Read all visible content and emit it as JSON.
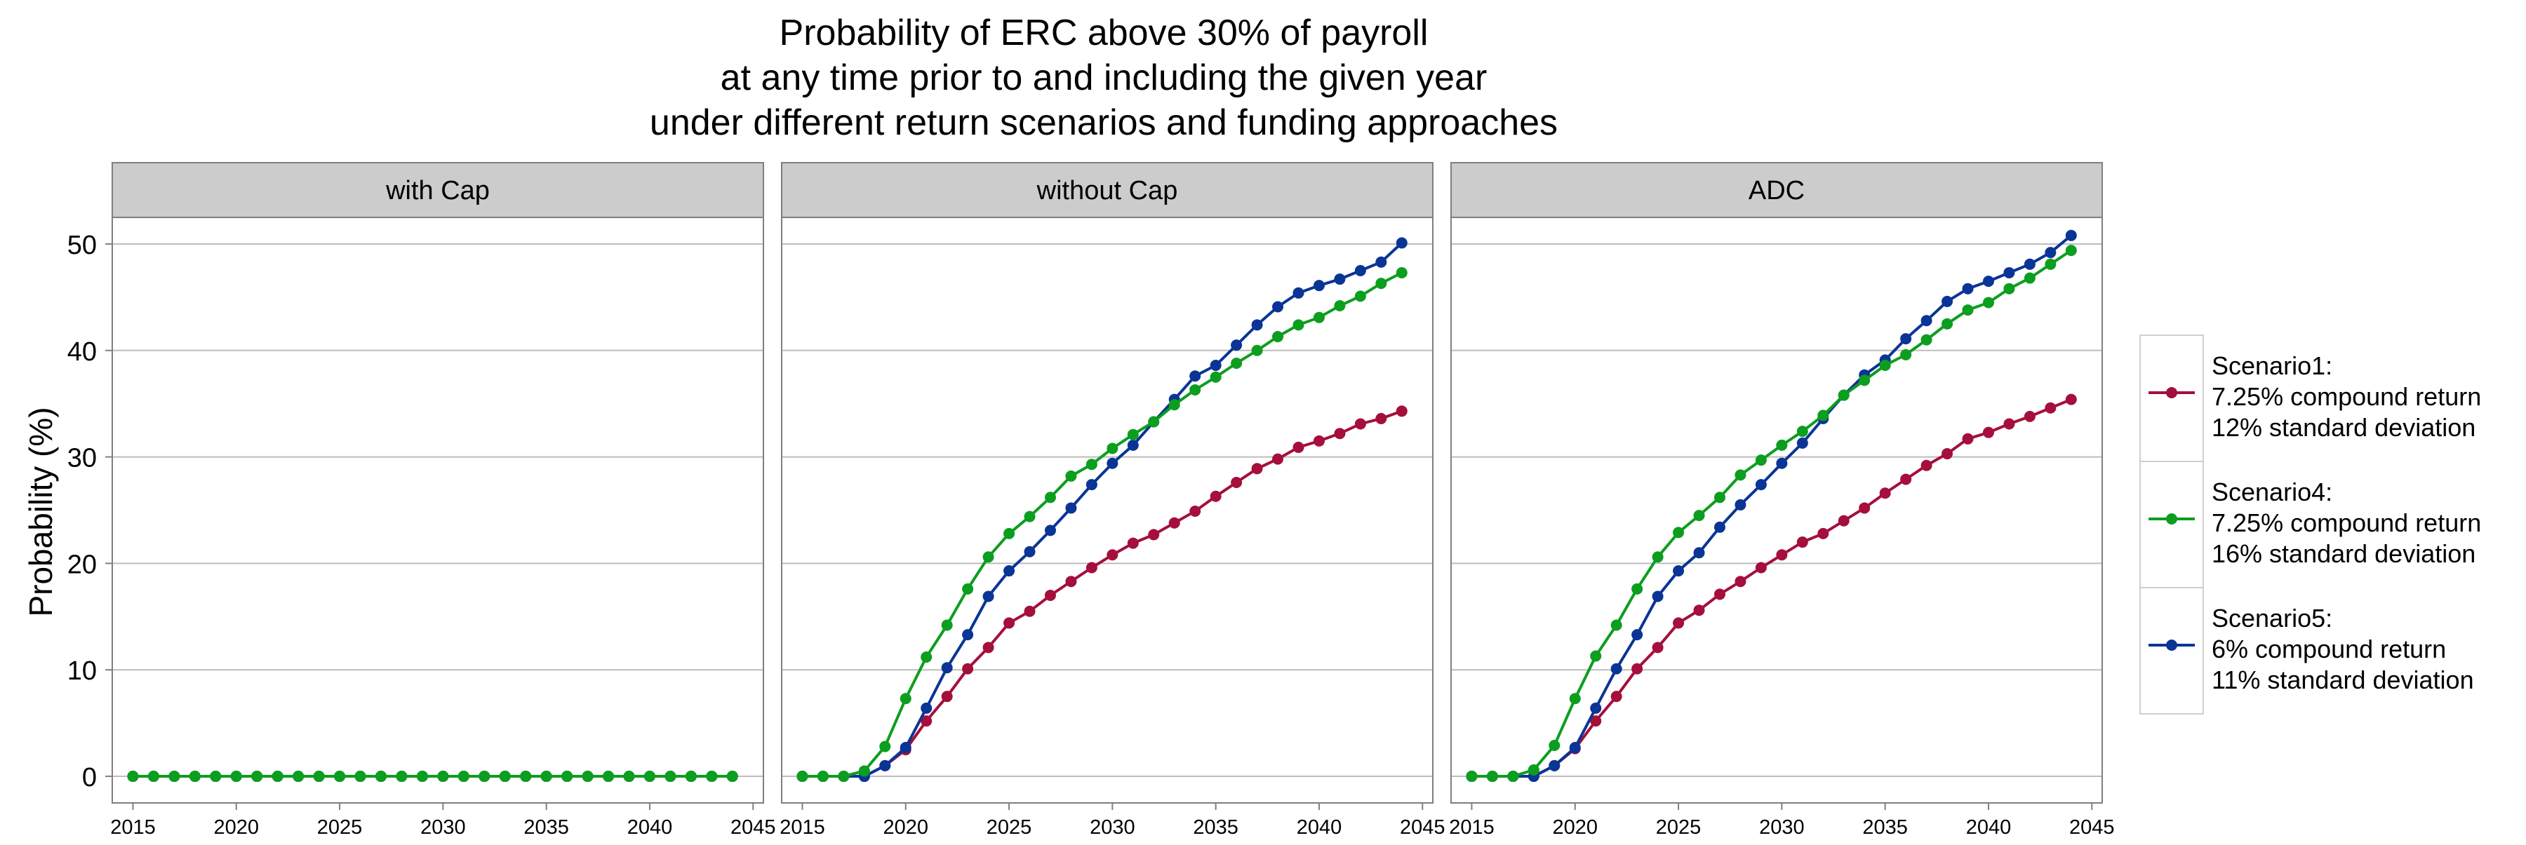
{
  "chart_data": {
    "type": "line",
    "title_lines": [
      "Probability of ERC above 30% of payroll",
      "at any time prior to and including the given year",
      "under different return scenarios and funding approaches"
    ],
    "ylabel": "Probability (%)",
    "xlabel": "",
    "xlim": [
      2014,
      2045.5
    ],
    "ylim": [
      -2.5,
      52.5
    ],
    "x_ticks": [
      2015,
      2020,
      2025,
      2030,
      2035,
      2040,
      2045
    ],
    "y_ticks": [
      0,
      10,
      20,
      30,
      40,
      50
    ],
    "grid": true,
    "legend_position": "right",
    "x": [
      2015,
      2016,
      2017,
      2018,
      2019,
      2020,
      2021,
      2022,
      2023,
      2024,
      2025,
      2026,
      2027,
      2028,
      2029,
      2030,
      2031,
      2032,
      2033,
      2034,
      2035,
      2036,
      2037,
      2038,
      2039,
      2040,
      2041,
      2042,
      2043,
      2044
    ],
    "legend": [
      {
        "series": "Scenario1",
        "color": "#a50f3c",
        "lines": [
          "Scenario1:",
          "7.25% compound return",
          "12% standard deviation"
        ]
      },
      {
        "series": "Scenario4",
        "color": "#0c9e1e",
        "lines": [
          "Scenario4:",
          "7.25% compound return",
          "16% standard deviation"
        ]
      },
      {
        "series": "Scenario5",
        "color": "#0a3596",
        "lines": [
          "Scenario5:",
          "6% compound return",
          "11% standard deviation"
        ]
      }
    ],
    "panels": [
      {
        "label": "with Cap",
        "series": [
          {
            "name": "Scenario1",
            "values": [
              0,
              0,
              0,
              0,
              0,
              0,
              0,
              0,
              0,
              0,
              0,
              0,
              0,
              0,
              0,
              0,
              0,
              0,
              0,
              0,
              0,
              0,
              0,
              0,
              0,
              0,
              0,
              0,
              0,
              0
            ]
          },
          {
            "name": "Scenario5",
            "values": [
              0,
              0,
              0,
              0,
              0,
              0,
              0,
              0,
              0,
              0,
              0,
              0,
              0,
              0,
              0,
              0,
              0,
              0,
              0,
              0,
              0,
              0,
              0,
              0,
              0,
              0,
              0,
              0,
              0,
              0
            ]
          },
          {
            "name": "Scenario4",
            "values": [
              0,
              0,
              0,
              0,
              0,
              0,
              0,
              0,
              0,
              0,
              0,
              0,
              0,
              0,
              0,
              0,
              0,
              0,
              0,
              0,
              0,
              0,
              0,
              0,
              0,
              0,
              0,
              0,
              0,
              0
            ]
          }
        ]
      },
      {
        "label": "without Cap",
        "series": [
          {
            "name": "Scenario1",
            "values": [
              0,
              0,
              0,
              0,
              1,
              2.5,
              5.2,
              7.5,
              10.1,
              12.1,
              14.4,
              15.5,
              17,
              18.3,
              19.6,
              20.8,
              21.9,
              22.7,
              23.8,
              24.9,
              26.3,
              27.6,
              28.9,
              29.8,
              30.9,
              31.5,
              32.2,
              33.1,
              33.6,
              34.3
            ]
          },
          {
            "name": "Scenario5",
            "values": [
              0,
              0,
              0,
              0,
              1,
              2.7,
              6.4,
              10.2,
              13.3,
              16.9,
              19.3,
              21.1,
              23.1,
              25.2,
              27.4,
              29.4,
              31.1,
              33.3,
              35.4,
              37.6,
              38.6,
              40.5,
              42.4,
              44.1,
              45.4,
              46.1,
              46.7,
              47.5,
              48.3,
              50.1
            ]
          },
          {
            "name": "Scenario4",
            "values": [
              0,
              0,
              0,
              0.5,
              2.8,
              7.3,
              11.2,
              14.2,
              17.6,
              20.6,
              22.8,
              24.4,
              26.2,
              28.2,
              29.3,
              30.8,
              32.1,
              33.3,
              34.9,
              36.3,
              37.5,
              38.8,
              40,
              41.3,
              42.4,
              43.1,
              44.2,
              45.1,
              46.3,
              47.3
            ]
          }
        ]
      },
      {
        "label": "ADC",
        "series": [
          {
            "name": "Scenario1",
            "values": [
              0,
              0,
              0,
              0,
              1,
              2.6,
              5.2,
              7.5,
              10.1,
              12.1,
              14.4,
              15.6,
              17.1,
              18.3,
              19.6,
              20.8,
              22,
              22.8,
              24,
              25.2,
              26.6,
              27.9,
              29.2,
              30.3,
              31.7,
              32.3,
              33.1,
              33.8,
              34.6,
              35.4
            ]
          },
          {
            "name": "Scenario5",
            "values": [
              0,
              0,
              0,
              0,
              1,
              2.7,
              6.4,
              10.1,
              13.3,
              16.9,
              19.3,
              21,
              23.4,
              25.5,
              27.4,
              29.4,
              31.3,
              33.6,
              35.8,
              37.7,
              39.1,
              41.1,
              42.8,
              44.6,
              45.8,
              46.5,
              47.3,
              48.1,
              49.2,
              50.8
            ]
          },
          {
            "name": "Scenario4",
            "values": [
              0,
              0,
              0,
              0.6,
              2.9,
              7.3,
              11.3,
              14.2,
              17.6,
              20.6,
              22.9,
              24.5,
              26.2,
              28.3,
              29.7,
              31.1,
              32.4,
              33.9,
              35.8,
              37.2,
              38.6,
              39.6,
              41,
              42.5,
              43.8,
              44.5,
              45.8,
              46.8,
              48.1,
              49.4
            ]
          }
        ]
      }
    ]
  }
}
